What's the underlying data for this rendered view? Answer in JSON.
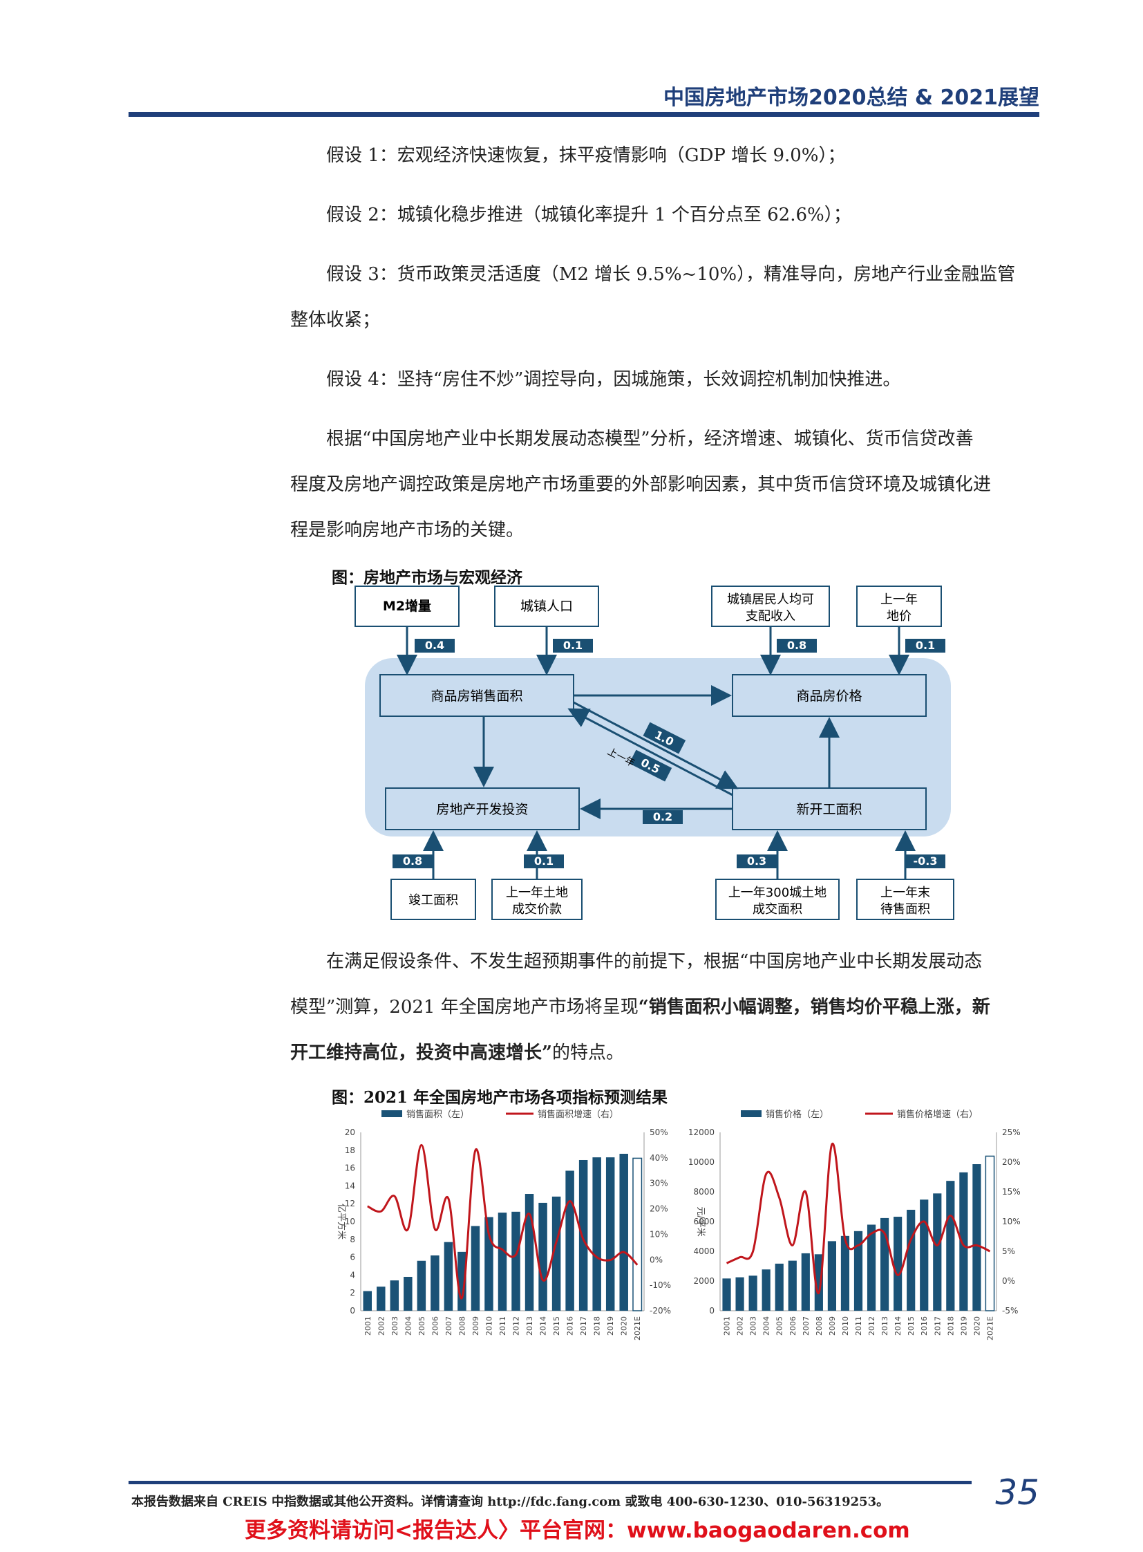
{
  "header": {
    "title": "中国房地产市场2020总结 & 2021展望"
  },
  "paragraphs": {
    "p1": "假设 1：宏观经济快速恢复，抹平疫情影响（GDP 增长 9.0%）；",
    "p2": "假设 2：城镇化稳步推进（城镇化率提升 1 个百分点至 62.6%）；",
    "p3_line1": "假设 3：货币政策灵活适度（M2 增长 9.5%~10%），精准导向，房地产行业金融监管",
    "p3_line2": "整体收紧；",
    "p4": "假设 4：坚持“房住不炒”调控导向，因城施策，长效调控机制加快推进。",
    "p5_line1": "根据“中国房地产业中长期发展动态模型”分析，经济增速、城镇化、货币信贷改善",
    "p5_line2": "程度及房地产调控政策是房地产市场重要的外部影响因素，其中货币信贷环境及城镇化进",
    "p5_line3": "程是影响房地产市场的关键。",
    "p6_line1": "在满足假设条件、不发生超预期事件的前提下，根据“中国房地产业中长期发展动态",
    "p6_line2": "模型”测算，2021 年全国房地产市场将呈现",
    "p6_bold2": "“销售面积小幅调整，销售均价平稳上涨，新",
    "p6_bold3": "开工维持高位，投资中高速增长”",
    "p6_line3_tail": "的特点。"
  },
  "diagram": {
    "title": "图：房地产市场与宏观经济",
    "nodes": {
      "m2": "M2增量",
      "urban_pop": "城镇人口",
      "income_l1": "城镇居民人均可",
      "income_l2": "支配收入",
      "land_price_l1": "上一年",
      "land_price_l2": "地价",
      "sales_area": "商品房销售面积",
      "price": "商品房价格",
      "investment": "房地产开发投资",
      "new_starts": "新开工面积",
      "completed": "竣工面积",
      "land_deal_l1": "上一年土地",
      "land_deal_l2": "成交价款",
      "land_300_l1": "上一年300城土地",
      "land_300_l2": "成交面积",
      "stock_l1": "上一年末",
      "stock_l2": "待售面积"
    },
    "weights": {
      "m2": "0.4",
      "urban_pop": "0.1",
      "income": "0.8",
      "land_price": "0.1",
      "new_to_sales": "1.0",
      "prev_year_label": "上一年",
      "sales_to_new": "0.5",
      "new_to_invest": "0.2",
      "completed": "0.8",
      "land_deal": "0.1",
      "land_300": "0.3",
      "stock": "-0.3"
    }
  },
  "charts_title": "图：2021 年全国房地产市场各项指标预测结果",
  "chart_data": [
    {
      "type": "bar",
      "categories": [
        "2001",
        "2002",
        "2003",
        "2004",
        "2005",
        "2006",
        "2007",
        "2008",
        "2009",
        "2010",
        "2011",
        "2012",
        "2013",
        "2014",
        "2015",
        "2016",
        "2017",
        "2018",
        "2019",
        "2020",
        "2021E"
      ],
      "series": [
        {
          "name": "销售面积（左）",
          "type": "bar",
          "axis": "left",
          "values": [
            2.2,
            2.7,
            3.4,
            3.8,
            5.6,
            6.2,
            7.7,
            6.6,
            9.5,
            10.5,
            11.0,
            11.1,
            13.1,
            12.1,
            12.8,
            15.7,
            16.9,
            17.2,
            17.2,
            17.6,
            17.1
          ]
        },
        {
          "name": "销售面积增速（右）",
          "type": "line",
          "axis": "right",
          "values": [
            0.21,
            0.19,
            0.25,
            0.12,
            0.45,
            0.12,
            0.24,
            -0.15,
            0.43,
            0.1,
            0.04,
            0.02,
            0.18,
            -0.08,
            0.07,
            0.23,
            0.08,
            0.01,
            -0.001,
            0.03,
            -0.02
          ]
        }
      ],
      "ylabel": "亿平方米",
      "ylim": [
        0,
        20
      ],
      "yticks": [
        "0",
        "2",
        "4",
        "6",
        "8",
        "10",
        "12",
        "14",
        "16",
        "18",
        "20"
      ],
      "y2lim": [
        -0.2,
        0.5
      ],
      "y2ticks": [
        "-20%",
        "-10%",
        "0%",
        "10%",
        "20%",
        "30%",
        "40%",
        "50%"
      ],
      "legend": "top"
    },
    {
      "type": "bar",
      "categories": [
        "2001",
        "2002",
        "2003",
        "2004",
        "2005",
        "2006",
        "2007",
        "2008",
        "2009",
        "2010",
        "2011",
        "2012",
        "2013",
        "2014",
        "2015",
        "2016",
        "2017",
        "2018",
        "2019",
        "2020",
        "2021E"
      ],
      "series": [
        {
          "name": "销售价格（左）",
          "type": "bar",
          "axis": "left",
          "values": [
            2170,
            2250,
            2359,
            2778,
            3168,
            3367,
            3864,
            3800,
            4681,
            5032,
            5357,
            5791,
            6237,
            6324,
            6793,
            7476,
            7892,
            8737,
            9310,
            9860,
            10400
          ]
        },
        {
          "name": "销售价格增速（右）",
          "type": "line",
          "axis": "right",
          "values": [
            0.03,
            0.04,
            0.05,
            0.18,
            0.14,
            0.06,
            0.15,
            -0.02,
            0.23,
            0.07,
            0.06,
            0.08,
            0.08,
            0.01,
            0.07,
            0.1,
            0.06,
            0.11,
            0.06,
            0.06,
            0.05
          ]
        }
      ],
      "ylabel": "元/平米",
      "ylim": [
        0,
        12000
      ],
      "yticks": [
        "0",
        "2000",
        "4000",
        "6000",
        "8000",
        "10000",
        "12000"
      ],
      "y2lim": [
        -0.05,
        0.25
      ],
      "y2ticks": [
        "-5%",
        "0%",
        "5%",
        "10%",
        "15%",
        "20%",
        "25%"
      ],
      "legend": "top"
    }
  ],
  "footer": {
    "note": "本报告数据来自 CREIS 中指数据或其他公开资料。详情请查询 http://fdc.fang.com 或致电 400-630-1230、010-56319253。",
    "page": "35",
    "promo": "更多资料请访问<报告达人〉平台官网：www.baogaodaren.com"
  },
  "colors": {
    "navy": "#1f3f7a",
    "bar": "#1a5276",
    "line": "#c0161c",
    "diagram_bg": "#c9dcef",
    "weight_box": "#1a4f72",
    "promo": "#e0101a"
  }
}
